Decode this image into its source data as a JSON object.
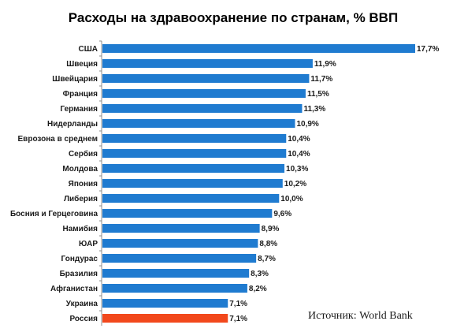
{
  "chart_data": {
    "type": "bar",
    "orientation": "horizontal",
    "title": "Расходы на здравоохранение по странам, % ВВП",
    "source": "Источник: World Bank",
    "categories": [
      "США",
      "Швеция",
      "Швейцария",
      "Франция",
      "Германия",
      "Нидерланды",
      "Еврозона в среднем",
      "Сербия",
      "Молдова",
      "Япония",
      "Либерия",
      "Босния и Герцеговина",
      "Намибия",
      "ЮАР",
      "Гондурас",
      "Бразилия",
      "Афганистан",
      "Украина",
      "Россия"
    ],
    "values": [
      17.7,
      11.9,
      11.7,
      11.5,
      11.3,
      10.9,
      10.4,
      10.4,
      10.3,
      10.2,
      10.0,
      9.6,
      8.9,
      8.8,
      8.7,
      8.3,
      8.2,
      7.1,
      7.1
    ],
    "value_labels": [
      "17,7%",
      "11,9%",
      "11,7%",
      "11,5%",
      "11,3%",
      "10,9%",
      "10,4%",
      "10,4%",
      "10,3%",
      "10,2%",
      "10,0%",
      "9,6%",
      "8,9%",
      "8,8%",
      "8,7%",
      "8,3%",
      "8,2%",
      "7,1%",
      "7,1%"
    ],
    "xlim": [
      0,
      17.7
    ],
    "grid": false,
    "legend": "none",
    "colors": {
      "bar": "#1f7bd0",
      "highlight": "#f2481c"
    },
    "highlight_category": "Россия"
  }
}
